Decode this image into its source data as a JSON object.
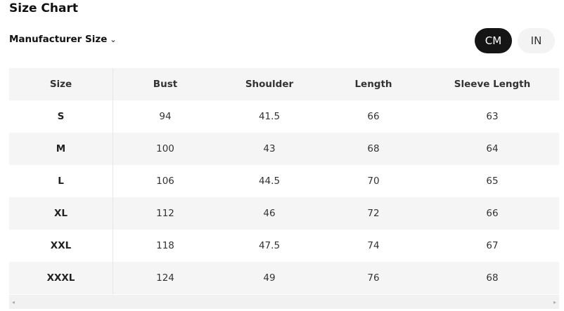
{
  "title": "Size Chart",
  "size_selector": {
    "label": "Manufacturer Size",
    "icon": "chevron-down-icon"
  },
  "units": [
    {
      "label": "CM",
      "active": true
    },
    {
      "label": "IN",
      "active": false
    }
  ],
  "table": {
    "headers": [
      "Size",
      "Bust",
      "Shoulder",
      "Length",
      "Sleeve Length"
    ],
    "rows": [
      [
        "S",
        "94",
        "41.5",
        "66",
        "63"
      ],
      [
        "M",
        "100",
        "43",
        "68",
        "64"
      ],
      [
        "L",
        "106",
        "44.5",
        "70",
        "65"
      ],
      [
        "XL",
        "112",
        "46",
        "72",
        "66"
      ],
      [
        "XXL",
        "118",
        "47.5",
        "74",
        "67"
      ],
      [
        "XXXL",
        "124",
        "49",
        "76",
        "68"
      ]
    ]
  },
  "scrollbar": {
    "left": "◂",
    "right": "▸"
  }
}
